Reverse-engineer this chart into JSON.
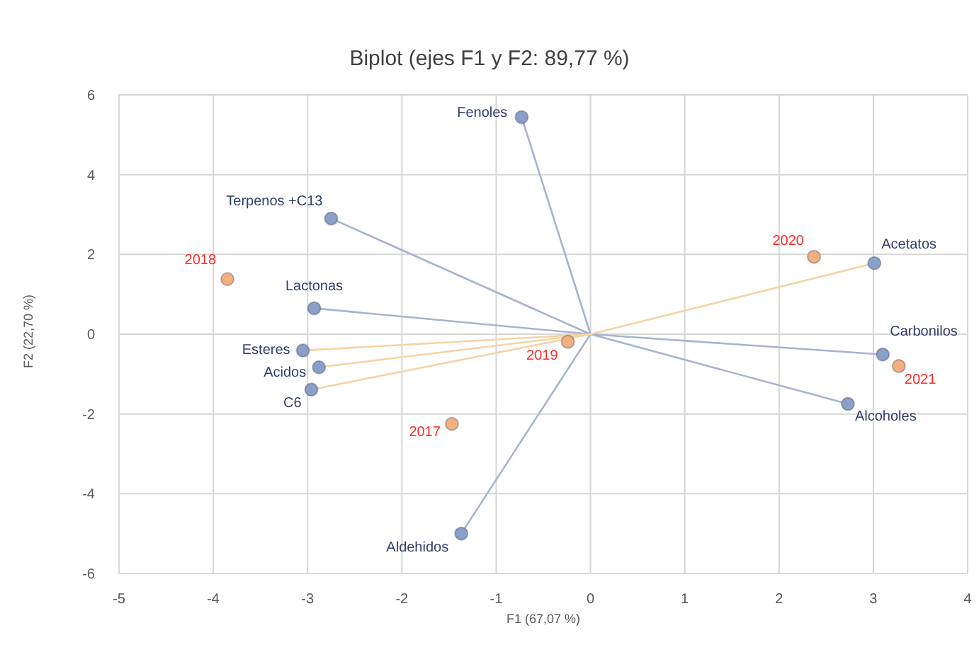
{
  "chart_data": {
    "type": "scatter",
    "title": "Biplot (ejes F1 y F2: 89,77 %)",
    "xlabel": "F1 (67,07 %)",
    "ylabel": "F2 (22,70 %)",
    "xlim": [
      -5,
      4
    ],
    "xticks": [
      -5,
      -4,
      -3,
      -2,
      -1,
      0,
      1,
      2,
      3,
      4
    ],
    "ylim": [
      -6,
      6
    ],
    "yticks": [
      -6,
      -4,
      -2,
      0,
      2,
      4,
      6
    ],
    "grid": true,
    "marker": "circle",
    "series": [
      {
        "type": "line",
        "marker": "none",
        "color": "#a7b4cf",
        "x": [
          0,
          -0.73,
          0,
          -2.75,
          0,
          -2.93,
          0,
          -1.37,
          0,
          3.1,
          0,
          2.73
        ],
        "values": [
          0,
          5.44,
          0,
          2.9,
          0,
          0.65,
          0,
          -5.0,
          0,
          -0.51,
          0,
          -1.75
        ]
      },
      {
        "type": "line",
        "marker": "none",
        "color": "#f6d3a4",
        "x": [
          0,
          -3.05,
          0,
          -2.88,
          0,
          -2.96,
          0,
          3.01
        ],
        "values": [
          0,
          -0.41,
          0,
          -0.83,
          0,
          -1.39,
          0,
          1.78
        ]
      },
      {
        "name": "Fenoles",
        "color": "#8aa0c9",
        "x": [
          -0.73
        ],
        "values": [
          5.44
        ]
      },
      {
        "name": "Terpenos +C13",
        "color": "#8aa0c9",
        "x": [
          -2.75
        ],
        "values": [
          2.9
        ]
      },
      {
        "name": "Lactonas",
        "color": "#8aa0c9",
        "x": [
          -2.93
        ],
        "values": [
          0.65
        ]
      },
      {
        "name": "Esteres",
        "color": "#8aa0c9",
        "x": [
          -3.05
        ],
        "values": [
          -0.41
        ]
      },
      {
        "name": "Acidos",
        "color": "#8aa0c9",
        "x": [
          -2.88
        ],
        "values": [
          -0.83
        ]
      },
      {
        "name": "C6",
        "color": "#8aa0c9",
        "x": [
          -2.96
        ],
        "values": [
          -1.39
        ]
      },
      {
        "name": "Aldehidos",
        "color": "#8aa0c9",
        "x": [
          -1.37
        ],
        "values": [
          -5.0
        ]
      },
      {
        "name": "Acetatos",
        "color": "#8aa0c9",
        "x": [
          3.01
        ],
        "values": [
          1.78
        ]
      },
      {
        "name": "Carbonilos",
        "color": "#8aa0c9",
        "x": [
          3.1
        ],
        "values": [
          -0.51
        ]
      },
      {
        "name": "Alcoholes",
        "color": "#8aa0c9",
        "x": [
          2.73
        ],
        "values": [
          -1.75
        ]
      },
      {
        "name": "2017",
        "color": "#f2b07e",
        "x": [
          -1.47
        ],
        "values": [
          -2.25
        ]
      },
      {
        "name": "2018",
        "color": "#f2b07e",
        "x": [
          -3.85
        ],
        "values": [
          1.38
        ]
      },
      {
        "name": "2019",
        "color": "#f2b07e",
        "x": [
          -0.24
        ],
        "values": [
          -0.19
        ]
      },
      {
        "name": "2020",
        "color": "#f2b07e",
        "x": [
          2.37
        ],
        "values": [
          1.94
        ]
      },
      {
        "name": "2021",
        "color": "#f2b07e",
        "x": [
          3.27
        ],
        "values": [
          -0.8
        ]
      }
    ]
  }
}
